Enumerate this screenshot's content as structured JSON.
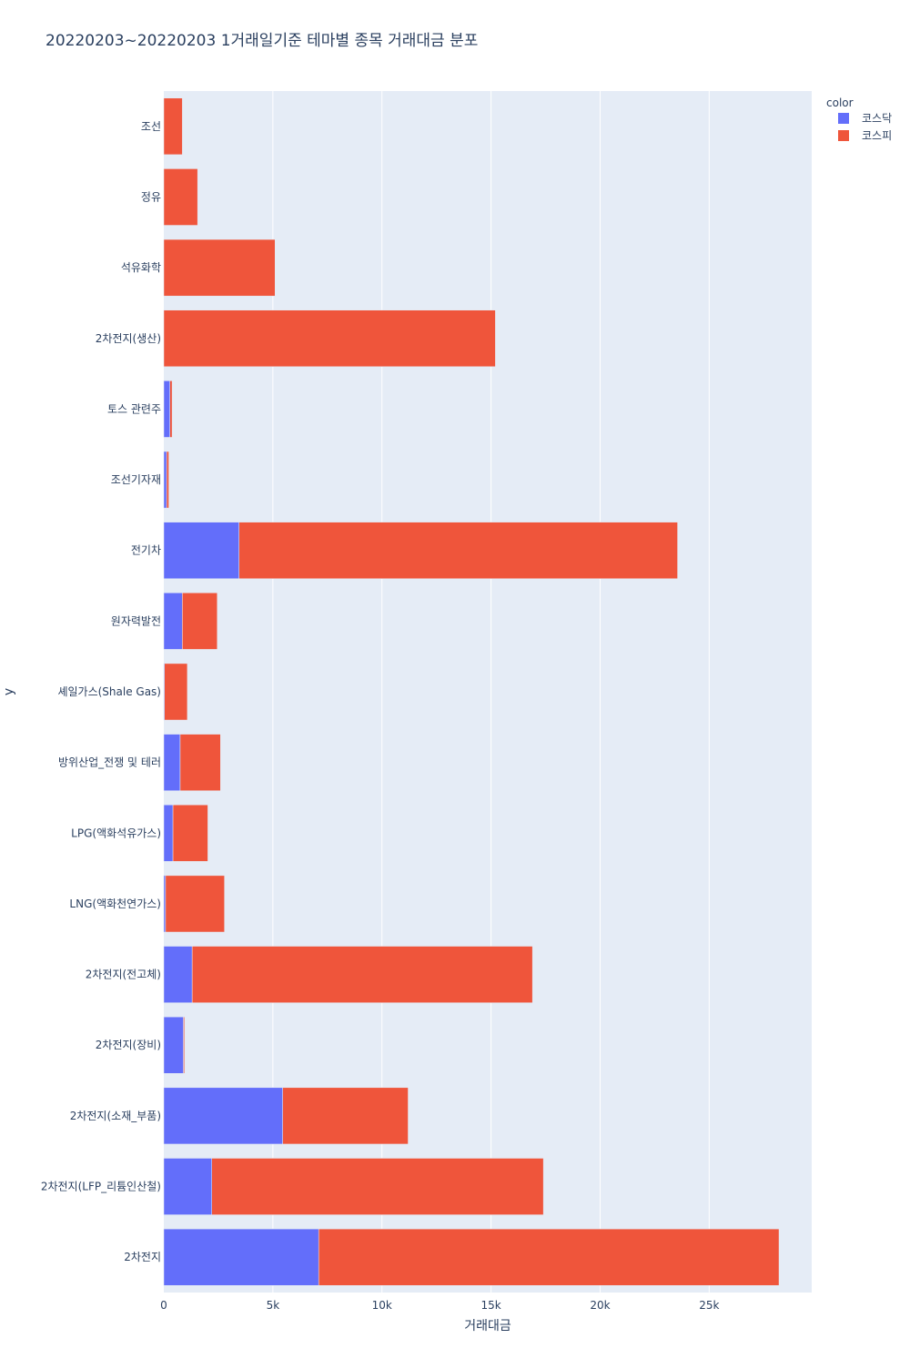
{
  "chart_data": {
    "type": "bar",
    "orientation": "horizontal",
    "barmode": "stack",
    "title": "20220203~20220203 1거래일기준 테마별 종목 거래대금 분포",
    "xlabel": "거래대금",
    "ylabel": "y",
    "xlim": [
      0,
      29700
    ],
    "x_ticks": [
      0,
      5000,
      10000,
      15000,
      20000,
      25000
    ],
    "x_tick_labels": [
      "0",
      "5k",
      "10k",
      "15k",
      "20k",
      "25k"
    ],
    "grid": true,
    "legend": {
      "title": "color",
      "position": "top-right"
    },
    "categories": [
      "조선",
      "정유",
      "석유화학",
      "2차전지(생산)",
      "토스 관련주",
      "조선기자재",
      "전기차",
      "원자력발전",
      "셰일가스(Shale Gas)",
      "방위산업_전쟁 및 테러",
      "LPG(액화석유가스)",
      "LNG(액화천연가스)",
      "2차전지(전고체)",
      "2차전지(장비)",
      "2차전지(소재_부품)",
      "2차전지(LFP_리튬인산철)",
      "2차전지"
    ],
    "series": [
      {
        "name": "코스닥",
        "color": "#636efa",
        "values": [
          0,
          0,
          0,
          0,
          280,
          130,
          3450,
          850,
          30,
          750,
          420,
          80,
          1300,
          900,
          5450,
          2200,
          7100
        ]
      },
      {
        "name": "코스피",
        "color": "#ef553b",
        "values": [
          850,
          1550,
          5100,
          15200,
          100,
          100,
          20100,
          1600,
          1050,
          1850,
          1600,
          2700,
          15600,
          50,
          5750,
          15200,
          21100
        ]
      }
    ]
  }
}
